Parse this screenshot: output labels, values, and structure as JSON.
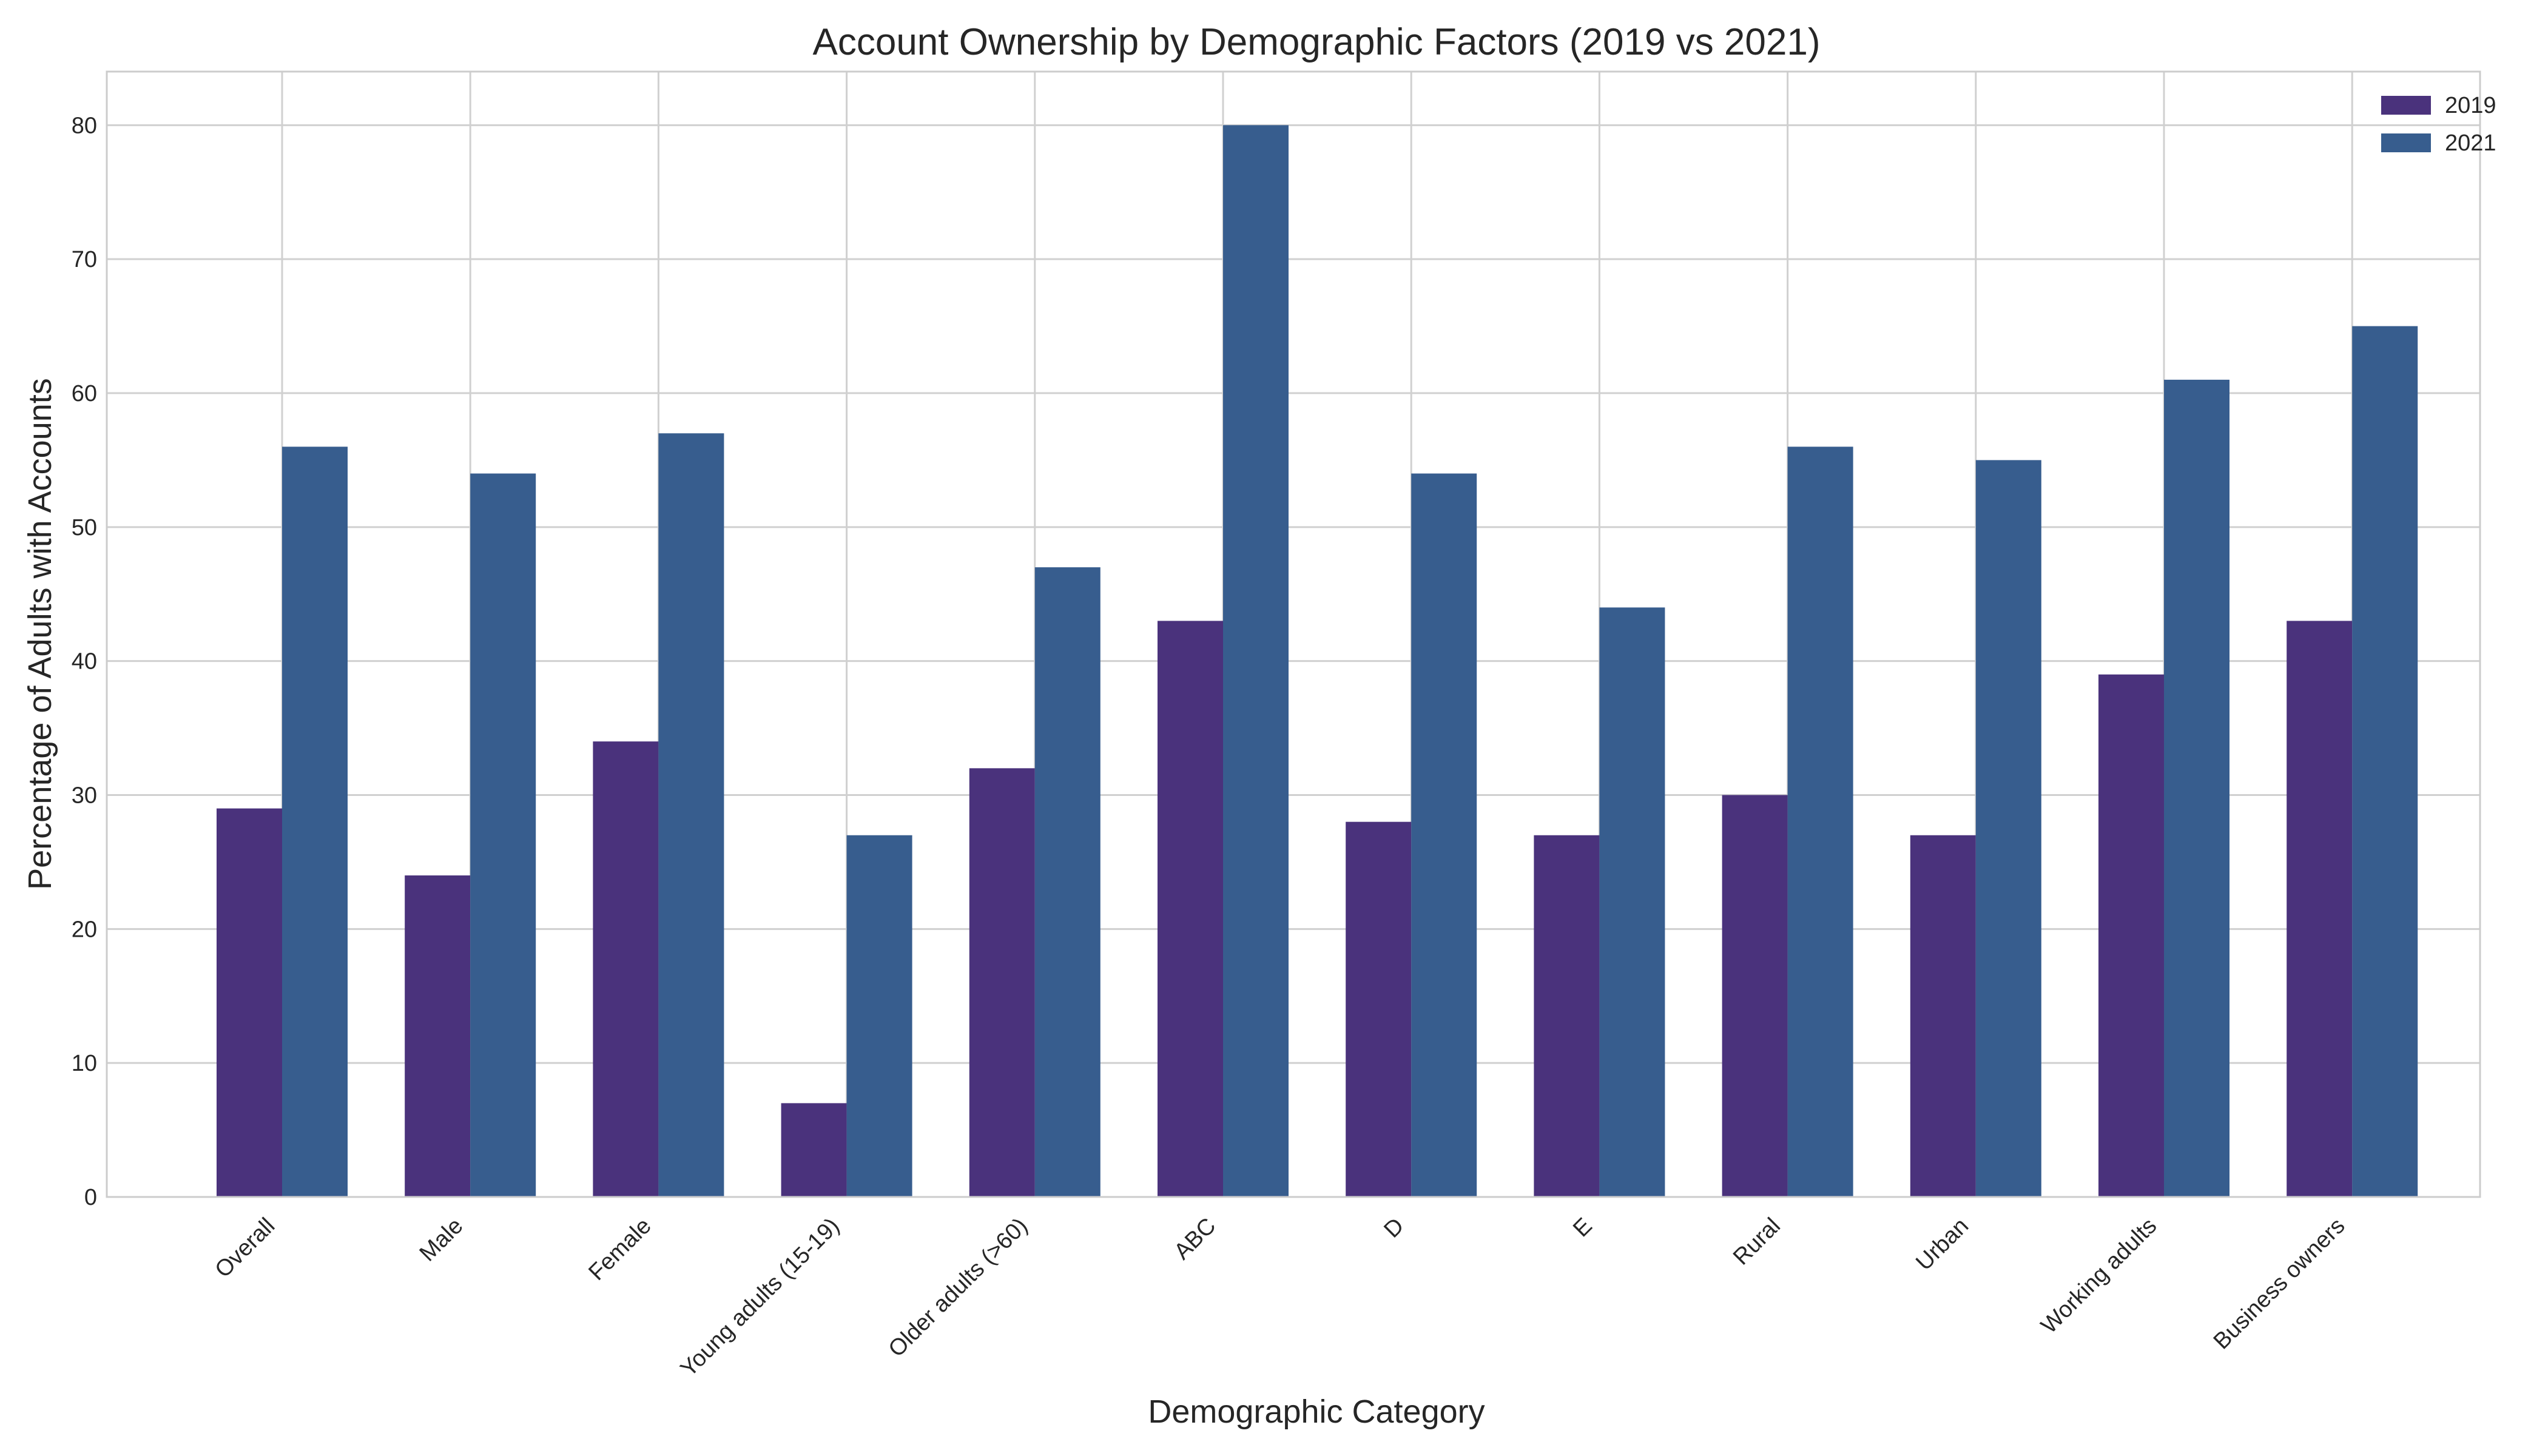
{
  "chart_data": {
    "type": "bar",
    "title": "Account Ownership by Demographic Factors (2019 vs 2021)",
    "xlabel": "Demographic Category",
    "ylabel": "Percentage of Adults with Accounts",
    "categories": [
      "Overall",
      "Male",
      "Female",
      "Young adults (15-19)",
      "Older adults (>60)",
      "ABC",
      "D",
      "E",
      "Rural",
      "Urban",
      "Working adults",
      "Business owners"
    ],
    "series": [
      {
        "name": "2019",
        "color": "#4a327c",
        "values": [
          29,
          24,
          34,
          7,
          32,
          43,
          28,
          27,
          30,
          27,
          39,
          43
        ]
      },
      {
        "name": "2021",
        "color": "#375d8e",
        "values": [
          56,
          54,
          57,
          27,
          47,
          80,
          54,
          44,
          56,
          55,
          61,
          65
        ]
      }
    ],
    "ylim": [
      0,
      84
    ],
    "yticks": [
      0,
      10,
      20,
      30,
      40,
      50,
      60,
      70,
      80
    ],
    "grid": true,
    "legend_position": "top-right"
  }
}
